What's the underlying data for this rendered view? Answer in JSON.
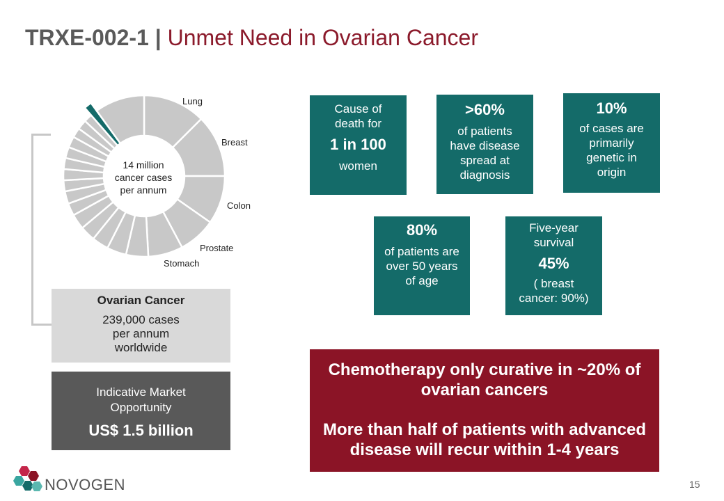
{
  "title": {
    "prefix": "TRXE-002-1 | ",
    "main": "Unmet Need in Ovarian Cancer"
  },
  "donut": {
    "center_text": [
      "14 million",
      "cancer cases",
      "per annum"
    ],
    "labels": [
      "Lung",
      "Breast",
      "Colon",
      "Prostate",
      "Stomach"
    ],
    "colors": {
      "segment": "#c8c8c8",
      "highlight": "#146b69"
    }
  },
  "stats": [
    {
      "lines": [
        "Cause of",
        "death for"
      ],
      "value": "1 in 100",
      "after": [
        "women"
      ]
    },
    {
      "value": ">60%",
      "lines": [
        "of patients",
        "have disease",
        "spread at",
        "diagnosis"
      ]
    },
    {
      "value": "10%",
      "lines": [
        "of cases are",
        "primarily",
        "genetic in",
        "origin"
      ]
    },
    {
      "value": "80%",
      "lines": [
        "of patients are",
        "over 50 years",
        "of age"
      ]
    },
    {
      "lines": [
        "Five-year",
        "survival"
      ],
      "value": "45%",
      "after": [
        "( breast",
        "cancer: 90%)"
      ]
    }
  ],
  "ovarian": {
    "title": "Ovarian Cancer",
    "lines": [
      "239,000 cases",
      "per annum",
      "worldwide"
    ]
  },
  "market": {
    "lines": [
      "Indicative Market",
      "Opportunity"
    ],
    "value": "US$ 1.5 billion"
  },
  "chemo": {
    "line1": [
      "Chemotherapy only curative in ~20% of",
      "ovarian cancers"
    ],
    "line2": [
      "More than half of patients with advanced",
      "disease will recur within 1-4 years"
    ]
  },
  "brand": {
    "name": "NOVOGEN"
  },
  "page_number": "15",
  "colors": {
    "teal": "#146b69",
    "maroon": "#8b1426",
    "title_red": "#8b1a2b",
    "dark_gray": "#595959",
    "light_gray": "#d9d9d9"
  }
}
